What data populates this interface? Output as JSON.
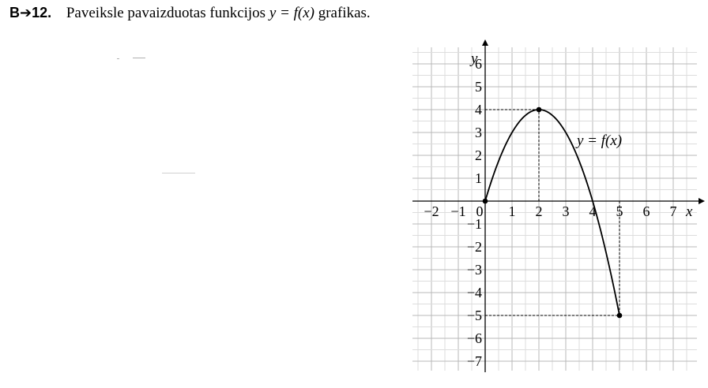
{
  "task": {
    "number": "B➔12.",
    "text_before": "Paveiksle pavaizduotas funkcijos",
    "function": "y = f(x)",
    "text_after": "grafikas."
  },
  "chart_data": {
    "type": "line",
    "function_label": "y = f(x)",
    "xlabel": "x",
    "ylabel": "y",
    "xlim": [
      -2.5,
      7.7
    ],
    "ylim": [
      -7.7,
      6.5
    ],
    "grid": true,
    "x_ticks": [
      -2,
      -1,
      1,
      2,
      3,
      4,
      5,
      6,
      7
    ],
    "x_tick_labels": [
      "−2",
      "−1",
      "1",
      "2",
      "3",
      "4",
      "5",
      "6",
      "7"
    ],
    "y_ticks": [
      6,
      5,
      4,
      3,
      2,
      1,
      -1,
      -2,
      -3,
      -4,
      -5,
      -6,
      -7
    ],
    "y_tick_labels": [
      "6",
      "5",
      "4",
      "3",
      "2",
      "1",
      "−1",
      "−2",
      "−3",
      "−4",
      "−5",
      "−6",
      "−7"
    ],
    "origin_label": "0",
    "curve": {
      "domain": [
        0,
        5
      ],
      "formula": "y = -x^2 + 4x",
      "points": [
        [
          0,
          0
        ],
        [
          1,
          3
        ],
        [
          2,
          4
        ],
        [
          3,
          3
        ],
        [
          4,
          0
        ],
        [
          5,
          -5
        ]
      ]
    },
    "marked_points": [
      {
        "x": 0,
        "y": 0
      },
      {
        "x": 2,
        "y": 4
      },
      {
        "x": 5,
        "y": -5
      }
    ],
    "guide_lines": [
      {
        "x": 2,
        "y": 4
      },
      {
        "x": 5,
        "y": -5
      }
    ]
  }
}
